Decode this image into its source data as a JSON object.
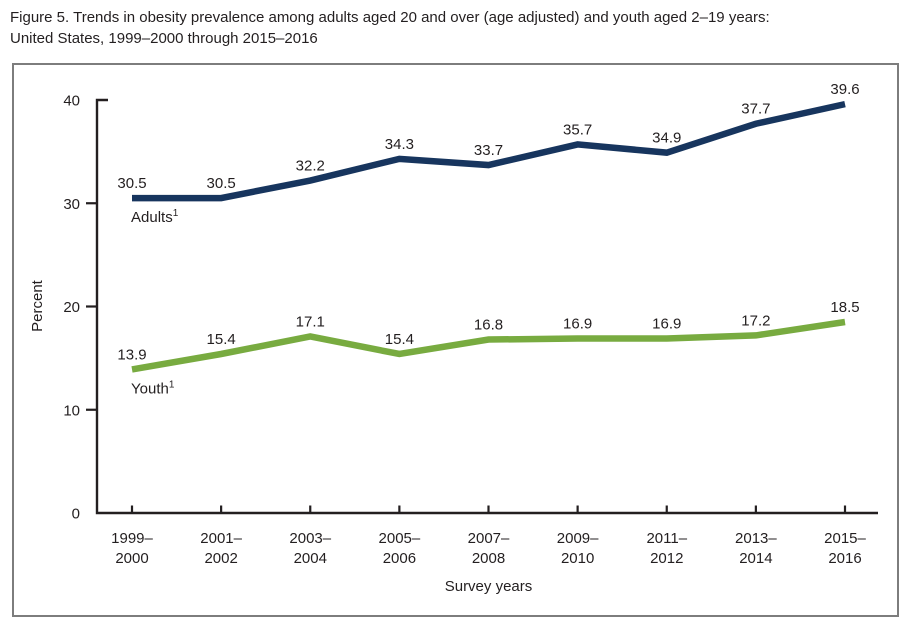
{
  "title_line1": "Figure 5. Trends in obesity prevalence among adults aged 20 and over (age adjusted) and youth aged 2–19 years:",
  "title_line2": "United States, 1999–2000 through 2015–2016",
  "chart_data": {
    "type": "line",
    "categories": [
      [
        "1999–",
        "2000"
      ],
      [
        "2001–",
        "2002"
      ],
      [
        "2003–",
        "2004"
      ],
      [
        "2005–",
        "2006"
      ],
      [
        "2007–",
        "2008"
      ],
      [
        "2009–",
        "2010"
      ],
      [
        "2011–",
        "2012"
      ],
      [
        "2013–",
        "2014"
      ],
      [
        "2015–",
        "2016"
      ]
    ],
    "series": [
      {
        "name": "Adults",
        "name_superscript": "1",
        "color": "#17355e",
        "values": [
          30.5,
          30.5,
          32.2,
          34.3,
          33.7,
          35.7,
          34.9,
          37.7,
          39.6
        ]
      },
      {
        "name": "Youth",
        "name_superscript": "1",
        "color": "#78ab40",
        "values": [
          13.9,
          15.4,
          17.1,
          15.4,
          16.8,
          16.9,
          16.9,
          17.2,
          18.5
        ]
      }
    ],
    "xlabel": "Survey years",
    "ylabel": "Percent",
    "yticks": [
      0,
      10,
      20,
      30,
      40
    ],
    "ylim": [
      0,
      40
    ],
    "grid": false,
    "legend": "inline-series-labels",
    "axis_color": "#231f20",
    "border_color": "#7d7d7d"
  }
}
